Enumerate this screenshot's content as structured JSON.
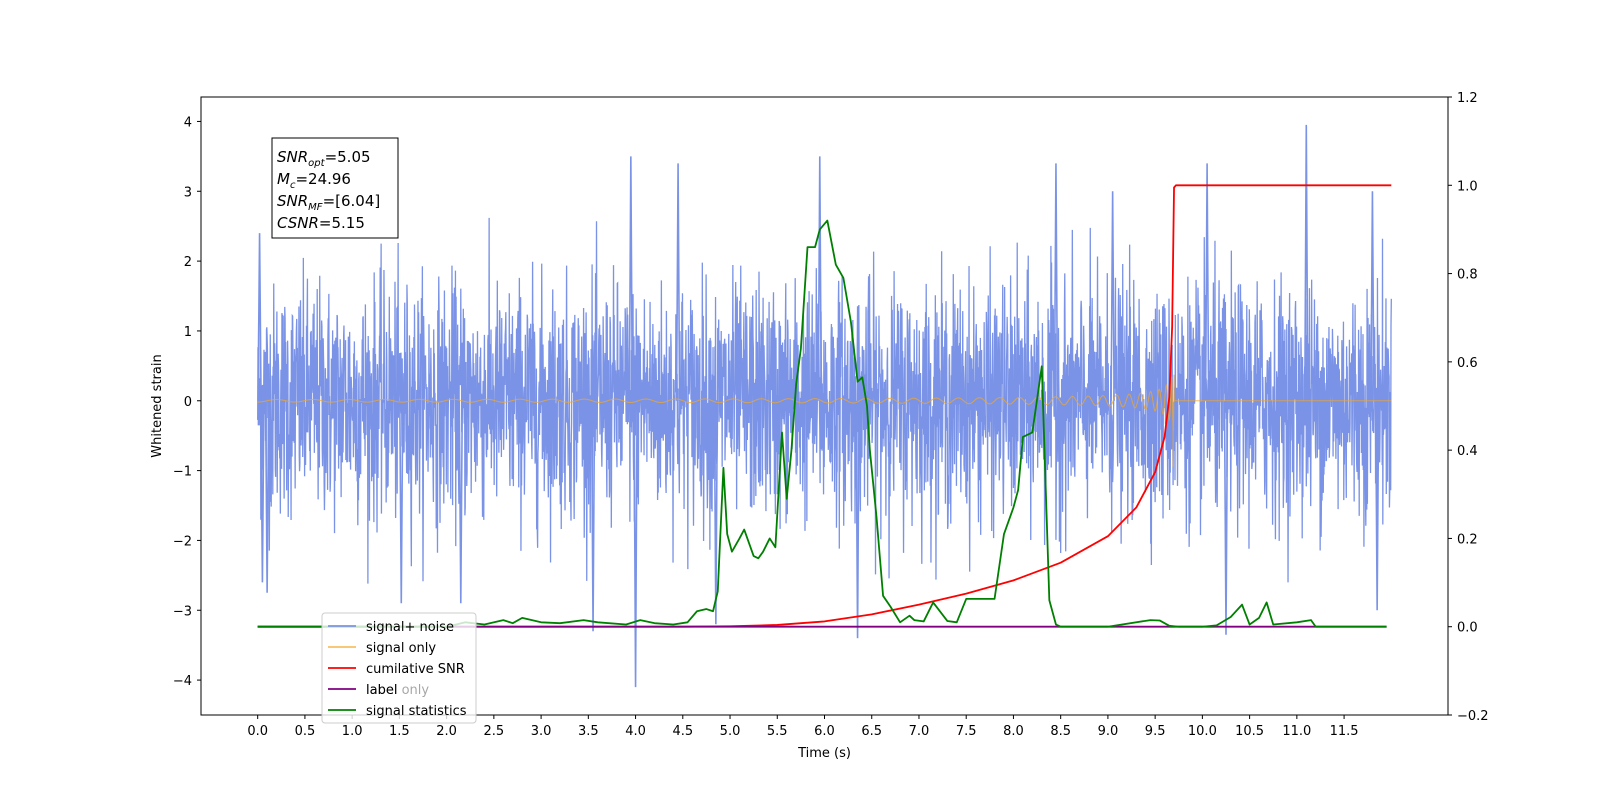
{
  "chart_data": {
    "type": "line",
    "title": "",
    "xlabel": "Time (s)",
    "ylabel_left": "Whitened strain",
    "ylabel_right": "",
    "xlim": [
      -0.6,
      12.6
    ],
    "ylim_left": [
      -4.5,
      4.35
    ],
    "ylim_right": [
      -0.2,
      1.2
    ],
    "xticks": [
      0.0,
      0.5,
      1.0,
      1.5,
      2.0,
      2.5,
      3.0,
      3.5,
      4.0,
      4.5,
      5.0,
      5.5,
      6.0,
      6.5,
      7.0,
      7.5,
      8.0,
      8.5,
      9.0,
      9.5,
      10.0,
      10.5,
      11.0,
      11.5
    ],
    "xtick_labels": [
      "0.0",
      "0.5",
      "1.0",
      "1.5",
      "2.0",
      "2.5",
      "3.0",
      "3.5",
      "4.0",
      "4.5",
      "5.0",
      "5.5",
      "6.0",
      "6.5",
      "7.0",
      "7.5",
      "8.0",
      "8.5",
      "9.0",
      "9.5",
      "10.0",
      "10.5",
      "11.0",
      "11.5"
    ],
    "yticks_left": [
      -4,
      -3,
      -2,
      -1,
      0,
      1,
      2,
      3,
      4
    ],
    "ytick_labels_left": [
      "−4",
      "−3",
      "−2",
      "−1",
      "0",
      "1",
      "2",
      "3",
      "4"
    ],
    "yticks_right": [
      -0.2,
      0.0,
      0.2,
      0.4,
      0.6,
      0.8,
      1.0,
      1.2
    ],
    "ytick_labels_right": [
      "−0.2",
      "0.0",
      "0.2",
      "0.4",
      "0.6",
      "0.8",
      "1.0",
      "1.2"
    ],
    "annotation": {
      "lines": [
        {
          "main": "SNR",
          "sub": "opt",
          "rest": "=5.05"
        },
        {
          "main": "M",
          "sub": "c",
          "rest": "=24.96"
        },
        {
          "main": "SNR",
          "sub": "MF",
          "rest": "=[6.04]"
        },
        {
          "main": "CSNR",
          "sub": "",
          "rest": "=5.15"
        }
      ]
    },
    "legend": {
      "placement": "lower-left",
      "entries": [
        "signal+ noise",
        "signal only",
        "cumilative SNR",
        "label",
        "signal statistics"
      ],
      "overlapped_text": "label only"
    },
    "series": [
      {
        "name": "signal+ noise",
        "axis": "left",
        "color": "#7a93e6",
        "kind": "noise",
        "x_range": [
          0.0,
          12.0
        ],
        "typical_amplitude": [
          -1.5,
          1.5
        ],
        "peaks": [
          {
            "x": 0.02,
            "y": 2.4
          },
          {
            "x": 0.05,
            "y": -2.6
          },
          {
            "x": 0.1,
            "y": -2.75
          },
          {
            "x": 1.52,
            "y": -2.9
          },
          {
            "x": 2.15,
            "y": -2.9
          },
          {
            "x": 3.55,
            "y": -3.3
          },
          {
            "x": 3.95,
            "y": 3.5
          },
          {
            "x": 4.0,
            "y": -4.1
          },
          {
            "x": 4.45,
            "y": 3.4
          },
          {
            "x": 4.85,
            "y": -3.2
          },
          {
            "x": 5.95,
            "y": 3.5
          },
          {
            "x": 6.35,
            "y": -3.4
          },
          {
            "x": 8.45,
            "y": 3.4
          },
          {
            "x": 9.05,
            "y": 3.0
          },
          {
            "x": 10.05,
            "y": 3.4
          },
          {
            "x": 10.25,
            "y": -3.35
          },
          {
            "x": 11.1,
            "y": 3.95
          },
          {
            "x": 11.8,
            "y": 3.0
          },
          {
            "x": 11.85,
            "y": -3.0
          }
        ]
      },
      {
        "name": "signal only",
        "axis": "left",
        "color": "#f5a623",
        "kind": "chirp",
        "x_range": [
          0.0,
          12.0
        ],
        "merger_time": 9.7,
        "peak_amplitude": 0.55,
        "min_amplitude": -0.95
      },
      {
        "name": "cumilative SNR",
        "axis": "right",
        "color": "#ff0000",
        "x": [
          0.0,
          4.5,
          5.0,
          5.5,
          6.0,
          6.5,
          7.0,
          7.5,
          8.0,
          8.5,
          9.0,
          9.3,
          9.5,
          9.6,
          9.65,
          9.68,
          9.7,
          9.72,
          12.0
        ],
        "y": [
          0.0,
          0.0,
          0.001,
          0.004,
          0.012,
          0.028,
          0.05,
          0.075,
          0.105,
          0.145,
          0.205,
          0.27,
          0.35,
          0.43,
          0.52,
          0.68,
          0.995,
          1.0,
          1.0
        ]
      },
      {
        "name": "label",
        "axis": "right",
        "color": "#800080",
        "x": [
          0.0,
          11.95
        ],
        "y": [
          0.0,
          0.0
        ]
      },
      {
        "name": "signal statistics",
        "axis": "right",
        "color": "#008000",
        "x": [
          0.0,
          2.0,
          2.2,
          2.4,
          2.6,
          2.7,
          2.8,
          3.0,
          3.2,
          3.45,
          3.6,
          3.9,
          4.05,
          4.2,
          4.4,
          4.55,
          4.65,
          4.75,
          4.82,
          4.87,
          4.93,
          4.97,
          5.02,
          5.1,
          5.15,
          5.2,
          5.25,
          5.3,
          5.35,
          5.42,
          5.48,
          5.55,
          5.6,
          5.65,
          5.7,
          5.75,
          5.82,
          5.9,
          5.95,
          6.03,
          6.12,
          6.2,
          6.28,
          6.35,
          6.4,
          6.45,
          6.48,
          6.55,
          6.62,
          6.7,
          6.8,
          6.9,
          6.95,
          7.05,
          7.15,
          7.3,
          7.4,
          7.5,
          7.65,
          7.8,
          7.9,
          8.0,
          8.05,
          8.1,
          8.2,
          8.3,
          8.38,
          8.45,
          8.5,
          8.6,
          9.0,
          9.45,
          9.55,
          9.65,
          9.75,
          10.0,
          10.15,
          10.3,
          10.42,
          10.5,
          10.6,
          10.68,
          10.75,
          11.0,
          11.15,
          11.2,
          11.95
        ],
        "y": [
          0.0,
          0.0,
          0.01,
          0.005,
          0.015,
          0.008,
          0.02,
          0.01,
          0.008,
          0.015,
          0.01,
          0.005,
          0.015,
          0.008,
          0.005,
          0.01,
          0.035,
          0.04,
          0.035,
          0.08,
          0.36,
          0.21,
          0.17,
          0.2,
          0.22,
          0.19,
          0.16,
          0.155,
          0.17,
          0.2,
          0.18,
          0.44,
          0.29,
          0.4,
          0.55,
          0.63,
          0.86,
          0.86,
          0.9,
          0.92,
          0.82,
          0.79,
          0.69,
          0.555,
          0.565,
          0.5,
          0.4,
          0.25,
          0.07,
          0.045,
          0.01,
          0.025,
          0.015,
          0.012,
          0.055,
          0.013,
          0.01,
          0.063,
          0.063,
          0.063,
          0.21,
          0.27,
          0.31,
          0.43,
          0.44,
          0.59,
          0.06,
          0.005,
          0.0,
          0.0,
          0.0,
          0.015,
          0.014,
          0.002,
          0.0,
          0.0,
          0.003,
          0.022,
          0.05,
          0.005,
          0.02,
          0.055,
          0.005,
          0.01,
          0.015,
          0.0,
          0.0
        ]
      }
    ]
  }
}
